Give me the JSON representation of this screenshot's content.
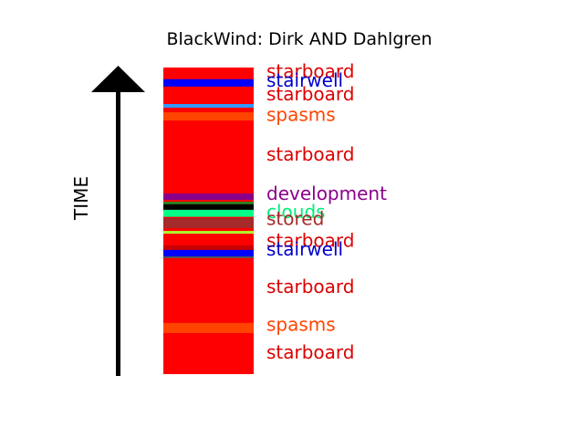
{
  "title": "BlackWind: Dirk AND Dahlgren",
  "axis_label": "TIME",
  "chart_data": {
    "type": "timeline-band",
    "time_range": [
      0,
      100
    ],
    "base_color": "#ff0000",
    "segments": [
      {
        "label": "stairwell",
        "color": "#0000ff",
        "start": 93.8,
        "end": 96.2
      },
      {
        "label": "",
        "color": "#3399ff",
        "start": 86.9,
        "end": 88.1
      },
      {
        "label": "",
        "color": "#ff4400",
        "start": 82.7,
        "end": 85.4
      },
      {
        "label": "development",
        "color": "#8b008b",
        "start": 56.8,
        "end": 58.9
      },
      {
        "label": "",
        "color": "#228b22",
        "start": 55.4,
        "end": 56.2
      },
      {
        "label": "",
        "color": "#000000",
        "start": 53.6,
        "end": 55.4
      },
      {
        "label": "clouds",
        "color": "#00ff88",
        "start": 51.3,
        "end": 53.6
      },
      {
        "label": "stored",
        "color": "#a52a2a",
        "start": 47.6,
        "end": 50.9
      },
      {
        "label": "",
        "color": "#adff2f",
        "start": 45.8,
        "end": 46.7
      },
      {
        "label": "",
        "color": "#c80000",
        "start": 40.5,
        "end": 42.0
      },
      {
        "label": "stairwell",
        "color": "#0000ff",
        "start": 38.4,
        "end": 40.5
      },
      {
        "label": "",
        "color": "#555555",
        "start": 37.8,
        "end": 38.4
      },
      {
        "label": "",
        "color": "#ff4400",
        "start": 13.4,
        "end": 16.7
      }
    ],
    "labels": [
      {
        "text": "starboard",
        "color": "#dd0000",
        "time": 98.8
      },
      {
        "text": "stairwell",
        "color": "#0000cc",
        "time": 95.8
      },
      {
        "text": "starboard",
        "color": "#dd0000",
        "time": 91.4
      },
      {
        "text": "spasms",
        "color": "#ff4400",
        "time": 84.6
      },
      {
        "text": "starboard",
        "color": "#dd0000",
        "time": 71.8
      },
      {
        "text": "development",
        "color": "#8b008b",
        "time": 58.9
      },
      {
        "text": "clouds",
        "color": "#00ee77",
        "time": 53.0
      },
      {
        "text": "stored",
        "color": "#a52a2a",
        "time": 50.7
      },
      {
        "text": "starboard",
        "color": "#dd0000",
        "time": 43.6
      },
      {
        "text": "stairwell",
        "color": "#0000cc",
        "time": 40.8
      },
      {
        "text": "starboard",
        "color": "#dd0000",
        "time": 28.5
      },
      {
        "text": "spasms",
        "color": "#ff4400",
        "time": 16.2
      },
      {
        "text": "starboard",
        "color": "#dd0000",
        "time": 7.1
      }
    ]
  }
}
